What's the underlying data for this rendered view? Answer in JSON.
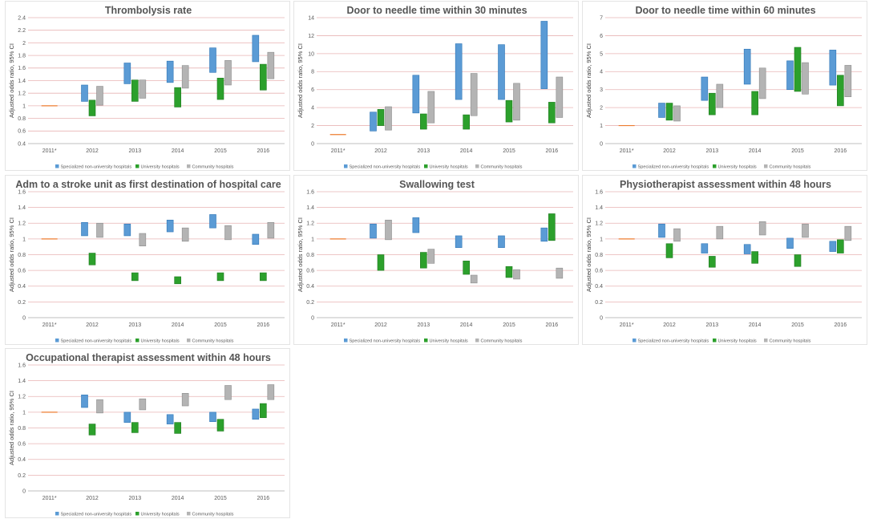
{
  "colors": {
    "specialized": "#5b9bd5",
    "specialized_edge": "#2e75b6",
    "university": "#2ca02c",
    "university_edge": "#1e7a1e",
    "community": "#b4b4b4",
    "community_edge": "#8c8c8c",
    "reference": "#ed7d31",
    "gridline": "#e8b4b4",
    "axis": "#bfbfbf"
  },
  "legend": [
    "Specialized non-university hospitals",
    "University hospitals",
    "Community hospitals"
  ],
  "y_axis_label": "Adjusted odds ratio, 95% CI",
  "chart_data": [
    {
      "type": "floating-bar",
      "title": "Thrombolysis rate",
      "categories": [
        "2011*",
        "2012",
        "2013",
        "2014",
        "2015",
        "2016"
      ],
      "ylabel": "Adjusted odds ratio, 95% CI",
      "ylim": [
        0.4,
        2.4
      ],
      "yticks": [
        "0.4",
        "0.6",
        "0.8",
        "1",
        "1.2",
        "1.4",
        "1.6",
        "1.8",
        "2",
        "2.2",
        "2.4"
      ],
      "reference": 1,
      "series": [
        {
          "name": "Specialized non-university hospitals",
          "ranges": [
            null,
            [
              1.07,
              1.33
            ],
            [
              1.35,
              1.68
            ],
            [
              1.37,
              1.71
            ],
            [
              1.53,
              1.92
            ],
            [
              1.7,
              2.12
            ]
          ]
        },
        {
          "name": "University hospitals",
          "ranges": [
            null,
            [
              0.84,
              1.09
            ],
            [
              1.07,
              1.41
            ],
            [
              0.98,
              1.29
            ],
            [
              1.1,
              1.44
            ],
            [
              1.25,
              1.66
            ]
          ]
        },
        {
          "name": "Community hospitals",
          "ranges": [
            null,
            [
              1.01,
              1.31
            ],
            [
              1.12,
              1.41
            ],
            [
              1.28,
              1.64
            ],
            [
              1.33,
              1.72
            ],
            [
              1.43,
              1.85
            ]
          ]
        }
      ]
    },
    {
      "type": "floating-bar",
      "title": "Door to needle time within 30 minutes",
      "categories": [
        "2011*",
        "2012",
        "2013",
        "2014",
        "2015",
        "2016"
      ],
      "ylabel": "Adjusted odds ratio, 95% CI",
      "ylim": [
        0,
        14
      ],
      "yticks": [
        "0",
        "2",
        "4",
        "6",
        "8",
        "10",
        "12",
        "14"
      ],
      "reference": 1,
      "series": [
        {
          "name": "Specialized non-university hospitals",
          "ranges": [
            null,
            [
              1.4,
              3.5
            ],
            [
              3.4,
              7.6
            ],
            [
              4.9,
              11.1
            ],
            [
              4.9,
              11.0
            ],
            [
              6.1,
              13.6
            ]
          ]
        },
        {
          "name": "University hospitals",
          "ranges": [
            null,
            [
              2.0,
              3.8
            ],
            [
              1.6,
              3.3
            ],
            [
              1.6,
              3.2
            ],
            [
              2.4,
              4.8
            ],
            [
              2.3,
              4.6
            ]
          ]
        },
        {
          "name": "Community hospitals",
          "ranges": [
            null,
            [
              1.5,
              4.1
            ],
            [
              2.3,
              5.8
            ],
            [
              3.1,
              7.8
            ],
            [
              2.6,
              6.7
            ],
            [
              2.9,
              7.4
            ]
          ]
        }
      ]
    },
    {
      "type": "floating-bar",
      "title": "Door to needle time within 60 minutes",
      "categories": [
        "2011*",
        "2012",
        "2013",
        "2014",
        "2015",
        "2016"
      ],
      "ylabel": "Adjusted odds ratio, 95% CI",
      "ylim": [
        0,
        7
      ],
      "yticks": [
        "0",
        "1",
        "2",
        "3",
        "4",
        "5",
        "6",
        "7"
      ],
      "reference": 1,
      "series": [
        {
          "name": "Specialized non-university hospitals",
          "ranges": [
            null,
            [
              1.45,
              2.25
            ],
            [
              2.4,
              3.7
            ],
            [
              3.3,
              5.25
            ],
            [
              3.0,
              4.6
            ],
            [
              3.25,
              5.2
            ]
          ]
        },
        {
          "name": "University hospitals",
          "ranges": [
            null,
            [
              1.3,
              2.25
            ],
            [
              1.6,
              2.8
            ],
            [
              1.6,
              2.9
            ],
            [
              2.9,
              5.35
            ],
            [
              2.1,
              3.8
            ]
          ]
        },
        {
          "name": "Community hospitals",
          "ranges": [
            null,
            [
              1.25,
              2.1
            ],
            [
              2.0,
              3.3
            ],
            [
              2.5,
              4.2
            ],
            [
              2.75,
              4.5
            ],
            [
              2.6,
              4.35
            ]
          ]
        }
      ]
    },
    {
      "type": "floating-bar",
      "title": "Adm to a stroke unit as first destination of hospital care",
      "categories": [
        "2011*",
        "2012",
        "2013",
        "2014",
        "2015",
        "2016"
      ],
      "ylabel": "Adjusted odds ratio, 95% CI",
      "ylim": [
        0,
        1.6
      ],
      "yticks": [
        "0",
        "0.2",
        "0.4",
        "0.6",
        "0.8",
        "1",
        "1.2",
        "1.4",
        "1.6"
      ],
      "reference": 1,
      "series": [
        {
          "name": "Specialized non-university hospitals",
          "ranges": [
            null,
            [
              1.04,
              1.21
            ],
            [
              1.04,
              1.19
            ],
            [
              1.09,
              1.24
            ],
            [
              1.14,
              1.31
            ],
            [
              0.93,
              1.06
            ]
          ]
        },
        {
          "name": "University hospitals",
          "ranges": [
            null,
            [
              0.67,
              0.82
            ],
            [
              0.47,
              0.57
            ],
            [
              0.43,
              0.52
            ],
            [
              0.47,
              0.57
            ],
            [
              0.47,
              0.57
            ]
          ]
        },
        {
          "name": "Community hospitals",
          "ranges": [
            null,
            [
              1.02,
              1.2
            ],
            [
              0.91,
              1.07
            ],
            [
              0.97,
              1.14
            ],
            [
              0.99,
              1.17
            ],
            [
              1.01,
              1.21
            ]
          ]
        }
      ]
    },
    {
      "type": "floating-bar",
      "title": "Swallowing test",
      "categories": [
        "2011*",
        "2012",
        "2013",
        "2014",
        "2015",
        "2016"
      ],
      "ylabel": "Adjusted odds ratio, 95% CI",
      "ylim": [
        0,
        1.6
      ],
      "yticks": [
        "0",
        "0.2",
        "0.4",
        "0.6",
        "0.8",
        "1",
        "1.2",
        "1.4",
        "1.6"
      ],
      "reference": 1,
      "series": [
        {
          "name": "Specialized non-university hospitals",
          "ranges": [
            null,
            [
              1.01,
              1.19
            ],
            [
              1.08,
              1.27
            ],
            [
              0.89,
              1.04
            ],
            [
              0.89,
              1.04
            ],
            [
              0.97,
              1.14
            ]
          ]
        },
        {
          "name": "University hospitals",
          "ranges": [
            null,
            [
              0.6,
              0.8
            ],
            [
              0.63,
              0.83
            ],
            [
              0.55,
              0.72
            ],
            [
              0.51,
              0.65
            ],
            [
              0.98,
              1.32
            ]
          ]
        },
        {
          "name": "Community hospitals",
          "ranges": [
            null,
            [
              0.99,
              1.24
            ],
            [
              0.69,
              0.87
            ],
            [
              0.44,
              0.54
            ],
            [
              0.49,
              0.61
            ],
            [
              0.5,
              0.63
            ]
          ]
        }
      ]
    },
    {
      "type": "floating-bar",
      "title": "Physiotherapist assessment within 48 hours",
      "categories": [
        "2011*",
        "2012",
        "2013",
        "2014",
        "2015",
        "2016"
      ],
      "ylabel": "Adjusted odds ratio, 95% CI",
      "ylim": [
        0,
        1.6
      ],
      "yticks": [
        "0",
        "0.2",
        "0.4",
        "0.6",
        "0.8",
        "1",
        "1.2",
        "1.4",
        "1.6"
      ],
      "reference": 1,
      "series": [
        {
          "name": "Specialized non-university hospitals",
          "ranges": [
            null,
            [
              1.02,
              1.19
            ],
            [
              0.82,
              0.94
            ],
            [
              0.81,
              0.93
            ],
            [
              0.88,
              1.01
            ],
            [
              0.84,
              0.97
            ]
          ]
        },
        {
          "name": "University hospitals",
          "ranges": [
            null,
            [
              0.76,
              0.94
            ],
            [
              0.64,
              0.78
            ],
            [
              0.69,
              0.84
            ],
            [
              0.65,
              0.8
            ],
            [
              0.82,
              0.99
            ]
          ]
        },
        {
          "name": "Community hospitals",
          "ranges": [
            null,
            [
              0.97,
              1.13
            ],
            [
              1.0,
              1.16
            ],
            [
              1.05,
              1.22
            ],
            [
              1.02,
              1.19
            ],
            [
              0.98,
              1.16
            ]
          ]
        }
      ]
    },
    {
      "type": "floating-bar",
      "title": "Occupational therapist assessment within 48 hours",
      "categories": [
        "2011*",
        "2012",
        "2013",
        "2014",
        "2015",
        "2016"
      ],
      "ylabel": "Adjusted odds ratio, 95% CI",
      "ylim": [
        0,
        1.6
      ],
      "yticks": [
        "0",
        "0.2",
        "0.4",
        "0.6",
        "0.8",
        "1",
        "1.2",
        "1.4",
        "1.6"
      ],
      "reference": 1,
      "series": [
        {
          "name": "Specialized non-university hospitals",
          "ranges": [
            null,
            [
              1.06,
              1.22
            ],
            [
              0.87,
              1.0
            ],
            [
              0.85,
              0.97
            ],
            [
              0.88,
              1.0
            ],
            [
              0.91,
              1.04
            ]
          ]
        },
        {
          "name": "University hospitals",
          "ranges": [
            null,
            [
              0.71,
              0.85
            ],
            [
              0.74,
              0.87
            ],
            [
              0.73,
              0.87
            ],
            [
              0.76,
              0.91
            ],
            [
              0.93,
              1.11
            ]
          ]
        },
        {
          "name": "Community hospitals",
          "ranges": [
            null,
            [
              0.99,
              1.16
            ],
            [
              1.03,
              1.17
            ],
            [
              1.08,
              1.24
            ],
            [
              1.16,
              1.34
            ],
            [
              1.16,
              1.35
            ]
          ]
        }
      ]
    }
  ]
}
